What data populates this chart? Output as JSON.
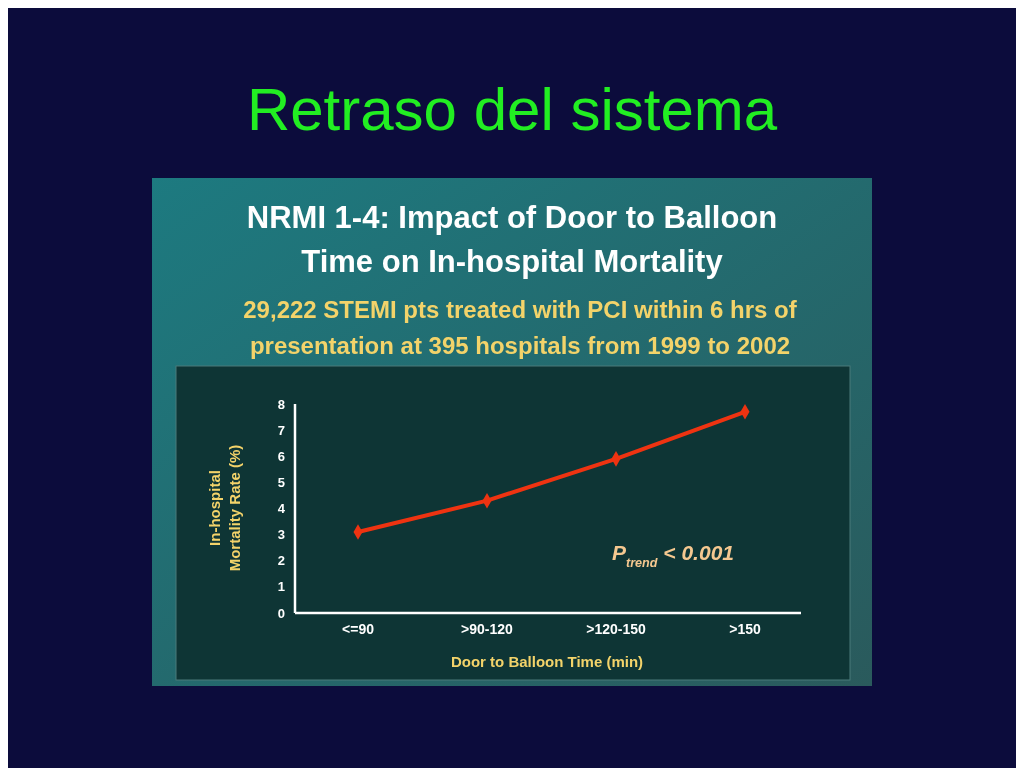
{
  "chart_data": {
    "type": "line",
    "title": "Retraso del sistema",
    "subtitle": "NRMI 1-4: Impact of Door to Balloon Time on In-hospital Mortality",
    "annotations": [
      "29,222 STEMI pts treated with PCI within 6 hrs of presentation at 395 hospitals from 1999 to 2002",
      "P$_{trend}$ < 0.001"
    ],
    "xlabel": "Door to Balloon Time (min)",
    "ylabel": "In-hospital Mortality Rate (%)",
    "categories": [
      "<=90",
      ">90-120",
      ">120-150",
      ">150"
    ],
    "series": [
      {
        "color": "#ee3311",
        "values": [
          3.1,
          4.3,
          5.9,
          7.7
        ]
      }
    ],
    "ylim": [
      0,
      8
    ],
    "yticks": [
      0,
      1,
      2,
      3,
      4,
      5,
      6,
      7,
      8
    ],
    "marker": "diamond",
    "line_style": "solid",
    "grid": false
  }
}
